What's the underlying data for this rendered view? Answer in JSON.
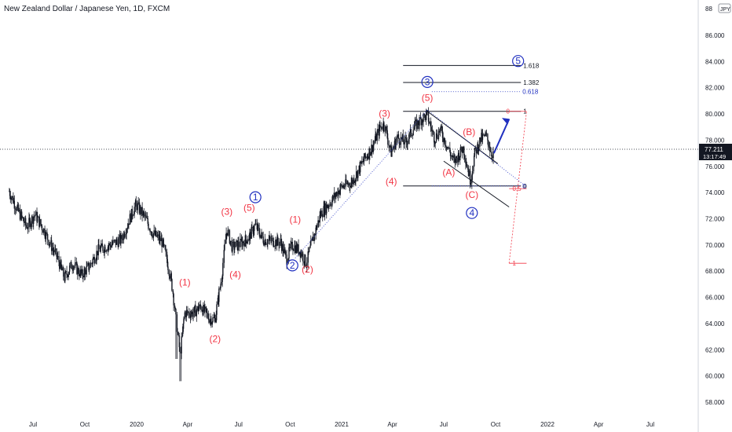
{
  "chart_data": {
    "type": "candlestick",
    "title": "New Zealand Dollar / Japanese Yen, 1D, FXCM",
    "currency_badge": "JPY",
    "y_axis_partial_label": "88",
    "ylim": [
      57,
      89
    ],
    "y_ticks": [
      "86.000",
      "84.000",
      "82.000",
      "80.000",
      "78.000",
      "76.000",
      "74.000",
      "72.000",
      "70.000",
      "68.000",
      "66.000",
      "64.000",
      "62.000",
      "60.000",
      "58.000"
    ],
    "x_ticks": [
      "Jul",
      "Oct",
      "2020",
      "Apr",
      "Jul",
      "Oct",
      "2021",
      "Apr",
      "Jul",
      "Oct",
      "2022",
      "Apr",
      "Jul"
    ],
    "last_price": "77.211",
    "countdown": "13:17:49",
    "candle_color": "#131722",
    "accent_red": "#f23645",
    "accent_blue": "#2030c0",
    "price_path": [
      {
        "date": "2019-05-20",
        "close": 74.1
      },
      {
        "date": "2019-06-05",
        "close": 72.6
      },
      {
        "date": "2019-06-20",
        "close": 71.4
      },
      {
        "date": "2019-07-05",
        "close": 72.3
      },
      {
        "date": "2019-07-20",
        "close": 71.2
      },
      {
        "date": "2019-08-01",
        "close": 70.1
      },
      {
        "date": "2019-08-15",
        "close": 68.9
      },
      {
        "date": "2019-08-26",
        "close": 67.5
      },
      {
        "date": "2019-09-10",
        "close": 68.6
      },
      {
        "date": "2019-09-25",
        "close": 67.7
      },
      {
        "date": "2019-10-10",
        "close": 68.4
      },
      {
        "date": "2019-10-25",
        "close": 69.6
      },
      {
        "date": "2019-11-15",
        "close": 70.0
      },
      {
        "date": "2019-12-05",
        "close": 70.4
      },
      {
        "date": "2019-12-20",
        "close": 72.0
      },
      {
        "date": "2019-12-31",
        "close": 73.1
      },
      {
        "date": "2020-01-15",
        "close": 72.2
      },
      {
        "date": "2020-01-30",
        "close": 70.9
      },
      {
        "date": "2020-02-15",
        "close": 70.3
      },
      {
        "date": "2020-02-25",
        "close": 68.8
      },
      {
        "date": "2020-03-05",
        "close": 66.8
      },
      {
        "date": "2020-03-12",
        "close": 64.2
      },
      {
        "date": "2020-03-19",
        "close": 61.6
      },
      {
        "date": "2020-03-27",
        "close": 64.8
      },
      {
        "date": "2020-04-10",
        "close": 64.8
      },
      {
        "date": "2020-04-25",
        "close": 65.3
      },
      {
        "date": "2020-05-10",
        "close": 64.4
      },
      {
        "date": "2020-05-20",
        "close": 64.3
      },
      {
        "date": "2020-06-01",
        "close": 67.5
      },
      {
        "date": "2020-06-10",
        "close": 71.2
      },
      {
        "date": "2020-06-20",
        "close": 69.8
      },
      {
        "date": "2020-07-05",
        "close": 70.1
      },
      {
        "date": "2020-07-20",
        "close": 70.6
      },
      {
        "date": "2020-07-31",
        "close": 71.5
      },
      {
        "date": "2020-08-15",
        "close": 70.4
      },
      {
        "date": "2020-08-30",
        "close": 70.3
      },
      {
        "date": "2020-09-15",
        "close": 70.2
      },
      {
        "date": "2020-09-25",
        "close": 68.9
      },
      {
        "date": "2020-10-05",
        "close": 70.0
      },
      {
        "date": "2020-10-20",
        "close": 69.5
      },
      {
        "date": "2020-10-30",
        "close": 68.6
      },
      {
        "date": "2020-11-10",
        "close": 70.3
      },
      {
        "date": "2020-11-25",
        "close": 72.4
      },
      {
        "date": "2020-12-15",
        "close": 73.4
      },
      {
        "date": "2020-12-31",
        "close": 74.4
      },
      {
        "date": "2021-01-20",
        "close": 74.8
      },
      {
        "date": "2021-02-10",
        "close": 76.5
      },
      {
        "date": "2021-02-25",
        "close": 77.5
      },
      {
        "date": "2021-03-10",
        "close": 78.9
      },
      {
        "date": "2021-03-18",
        "close": 79.3
      },
      {
        "date": "2021-03-30",
        "close": 77.0
      },
      {
        "date": "2021-04-10",
        "close": 78.2
      },
      {
        "date": "2021-04-25",
        "close": 77.8
      },
      {
        "date": "2021-05-10",
        "close": 79.0
      },
      {
        "date": "2021-05-25",
        "close": 79.7
      },
      {
        "date": "2021-06-02",
        "close": 79.9
      },
      {
        "date": "2021-06-15",
        "close": 78.1
      },
      {
        "date": "2021-06-25",
        "close": 78.8
      },
      {
        "date": "2021-07-10",
        "close": 77.3
      },
      {
        "date": "2021-07-20",
        "close": 76.3
      },
      {
        "date": "2021-08-05",
        "close": 77.4
      },
      {
        "date": "2021-08-18",
        "close": 74.9
      },
      {
        "date": "2021-08-25",
        "close": 76.9
      },
      {
        "date": "2021-09-05",
        "close": 78.1
      },
      {
        "date": "2021-09-15",
        "close": 78.3
      },
      {
        "date": "2021-09-25",
        "close": 76.9
      },
      {
        "date": "2021-09-28",
        "close": 77.2
      }
    ],
    "wave_labels_red": [
      {
        "text": "(1)",
        "date": "2020-03-27",
        "price": 66.9
      },
      {
        "text": "(2)",
        "date": "2020-05-20",
        "price": 62.6
      },
      {
        "text": "(3)",
        "date": "2020-06-10",
        "price": 72.3
      },
      {
        "text": "(4)",
        "date": "2020-06-25",
        "price": 67.5
      },
      {
        "text": "(5)",
        "date": "2020-07-20",
        "price": 72.6
      },
      {
        "text": "(1)",
        "date": "2020-10-10",
        "price": 71.7
      },
      {
        "text": "(2)",
        "date": "2020-11-01",
        "price": 67.9
      },
      {
        "text": "(3)",
        "date": "2021-03-18",
        "price": 79.8
      },
      {
        "text": "(4)",
        "date": "2021-03-30",
        "price": 74.6
      },
      {
        "text": "(5)",
        "date": "2021-06-02",
        "price": 81.0
      },
      {
        "text": "(A)",
        "date": "2021-07-10",
        "price": 75.3
      },
      {
        "text": "(B)",
        "date": "2021-08-15",
        "price": 78.4
      },
      {
        "text": "(C)",
        "date": "2021-08-20",
        "price": 73.6
      }
    ],
    "wave_labels_blue": [
      {
        "text": "1",
        "date": "2020-07-31",
        "price": 73.4
      },
      {
        "text": "2",
        "date": "2020-10-05",
        "price": 68.2
      },
      {
        "text": "3",
        "date": "2021-06-02",
        "price": 82.2
      },
      {
        "text": "4",
        "date": "2021-08-20",
        "price": 72.2
      },
      {
        "text": "5",
        "date": "2021-11-10",
        "price": 83.8
      }
    ],
    "fib_levels_black": [
      {
        "label": "1.618",
        "price": 83.7,
        "from": "2021-04-20",
        "to": "2021-11-15"
      },
      {
        "label": "1.382",
        "price": 82.4,
        "from": "2021-04-20",
        "to": "2021-11-15"
      },
      {
        "label": "1",
        "price": 80.2,
        "from": "2021-04-20",
        "to": "2021-11-15"
      },
      {
        "label": "0",
        "price": 74.5,
        "from": "2021-04-20",
        "to": "2021-11-15"
      }
    ],
    "fib_levels_blue": [
      {
        "label": "0.618",
        "price": 81.7,
        "from": "2021-06-10",
        "to": "2021-11-15"
      },
      {
        "label": "0",
        "price": 74.5,
        "from": "2021-06-10",
        "to": "2021-11-15"
      }
    ],
    "fib_levels_red": [
      {
        "label": "0",
        "price": 80.2,
        "from": "2021-10-25",
        "to": "2021-11-25"
      },
      {
        "label": "0.5",
        "price": 74.3,
        "from": "2021-10-25",
        "to": "2021-11-25"
      },
      {
        "label": "1",
        "price": 68.6,
        "from": "2021-10-25",
        "to": "2021-11-25"
      }
    ]
  }
}
